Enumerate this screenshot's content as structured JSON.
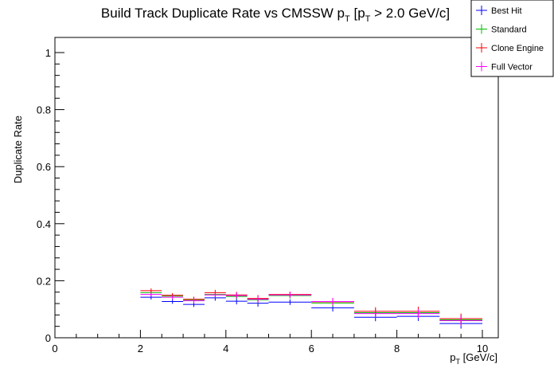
{
  "chart_data": {
    "type": "scatter",
    "title": {
      "main": "Build Track Duplicate Rate vs CMSSW p",
      "sub1": "T",
      "mid": " [p",
      "sub2": "T",
      "tail": " > 2.0 GeV/c]"
    },
    "xlabel": {
      "main": "p",
      "sub": "T",
      "tail": " [GeV/c]"
    },
    "ylabel": "Duplicate Rate",
    "xlim": [
      0,
      10.4
    ],
    "ylim": [
      0,
      1.05
    ],
    "x_ticks": [
      0,
      2,
      4,
      6,
      8,
      10
    ],
    "x_tick_labels": [
      "0",
      "2",
      "4",
      "6",
      "8",
      "10"
    ],
    "y_ticks": [
      0,
      0.2,
      0.4,
      0.6,
      0.8,
      1.0
    ],
    "y_tick_labels": [
      "0",
      "0.2",
      "0.4",
      "0.6",
      "0.8",
      "1"
    ],
    "grid": false,
    "legend_position": "top-right",
    "bins": [
      [
        2.0,
        2.5
      ],
      [
        2.5,
        3.0
      ],
      [
        3.0,
        3.5
      ],
      [
        3.5,
        4.0
      ],
      [
        4.0,
        4.5
      ],
      [
        4.5,
        5.0
      ],
      [
        5.0,
        6.0
      ],
      [
        6.0,
        7.0
      ],
      [
        7.0,
        8.0
      ],
      [
        8.0,
        9.0
      ],
      [
        9.0,
        10.0
      ]
    ],
    "series": [
      {
        "name": "Best Hit",
        "color": "#0000ff",
        "values": [
          0.142,
          0.127,
          0.117,
          0.14,
          0.128,
          0.121,
          0.125,
          0.105,
          0.072,
          0.075,
          0.05
        ],
        "errors": [
          0.008,
          0.008,
          0.009,
          0.01,
          0.011,
          0.012,
          0.01,
          0.013,
          0.014,
          0.016,
          0.018
        ]
      },
      {
        "name": "Standard",
        "color": "#00bb00",
        "values": [
          0.158,
          0.146,
          0.132,
          0.152,
          0.145,
          0.133,
          0.148,
          0.122,
          0.088,
          0.088,
          0.063
        ],
        "errors": [
          0.008,
          0.008,
          0.009,
          0.01,
          0.011,
          0.012,
          0.01,
          0.013,
          0.014,
          0.016,
          0.018
        ]
      },
      {
        "name": "Clone Engine",
        "color": "#ff0000",
        "values": [
          0.165,
          0.149,
          0.135,
          0.158,
          0.15,
          0.138,
          0.152,
          0.126,
          0.093,
          0.093,
          0.067
        ],
        "errors": [
          0.008,
          0.008,
          0.009,
          0.01,
          0.011,
          0.012,
          0.01,
          0.013,
          0.014,
          0.016,
          0.018
        ]
      },
      {
        "name": "Full Vector",
        "color": "#ff00ff",
        "values": [
          0.152,
          0.142,
          0.13,
          0.15,
          0.148,
          0.135,
          0.15,
          0.127,
          0.085,
          0.085,
          0.06
        ],
        "errors": [
          0.008,
          0.008,
          0.009,
          0.01,
          0.011,
          0.012,
          0.01,
          0.013,
          0.014,
          0.016,
          0.018
        ]
      }
    ]
  }
}
